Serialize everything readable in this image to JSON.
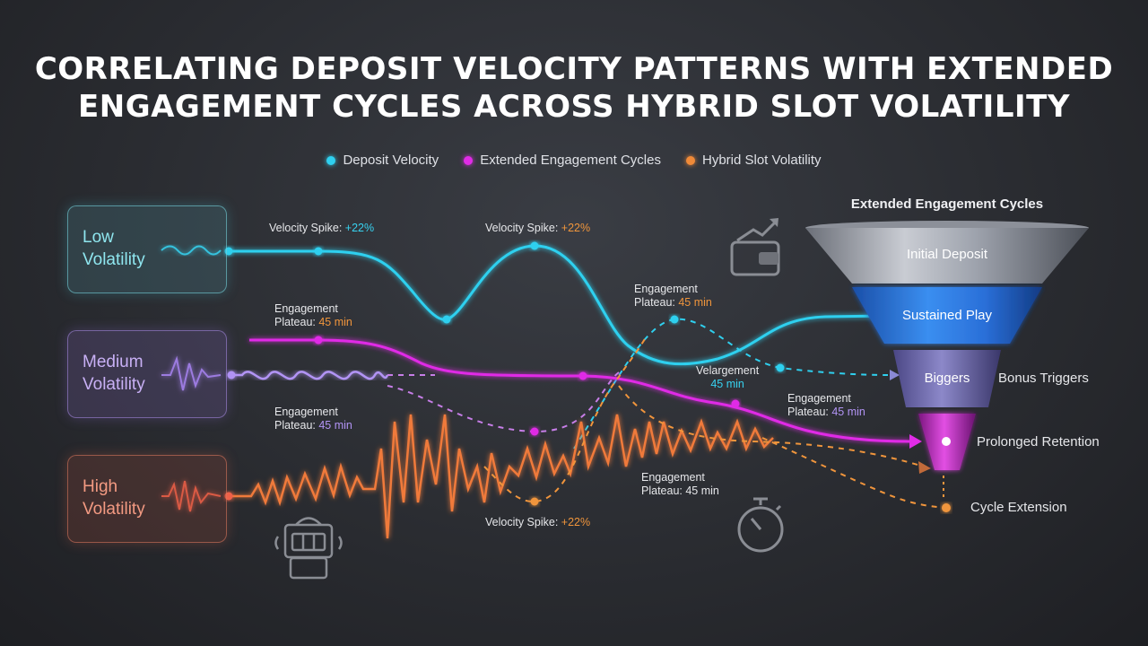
{
  "title": {
    "line1": "CORRELATING DEPOSIT VELOCITY PATTERNS WITH EXTENDED",
    "line2": "ENGAGEMENT CYCLES ACROSS HYBRID SLOT VOLATILITY"
  },
  "legend": [
    {
      "label": "Deposit Velocity",
      "color": "#2fd0ef"
    },
    {
      "label": "Extended Engagement Cycles",
      "color": "#e02ce6"
    },
    {
      "label": "Hybrid Slot Volatility",
      "color": "#f08a38"
    }
  ],
  "volatility": {
    "low": {
      "line1": "Low",
      "line2": "Volatility",
      "color": "#2fd0ef"
    },
    "medium": {
      "line1": "Medium",
      "line2": "Volatility",
      "color": "#a885f2"
    },
    "high": {
      "line1": "High",
      "line2": "Volatility",
      "color": "#f0604a"
    }
  },
  "annotations": {
    "spike1": {
      "text": "Velocity Spike: ",
      "value": "+22%"
    },
    "spike2": {
      "text": "Velocity Spike: ",
      "value": "+22%"
    },
    "spike3": {
      "text": "Velocity Spike: ",
      "value": "+22%"
    },
    "plateau1": {
      "line1": "Engagement",
      "line2": "Plateau: ",
      "value": "45 min"
    },
    "plateau2": {
      "line1": "Engagement",
      "line2": "Plateau: ",
      "value": "45 min"
    },
    "plateau3": {
      "line1": "Engagement",
      "line2": "Plateau: ",
      "value": "45 min"
    },
    "plateau4": {
      "line1": "Engagement",
      "line2": "Plateau: ",
      "value": "45 min"
    },
    "plateau5": {
      "line1": "Engagement",
      "line2": "Plateau: ",
      "value": "45 min"
    },
    "velargement": {
      "line1": "Velargement",
      "line2": "45 min"
    }
  },
  "funnel": {
    "title": "Extended Engagement Cycles",
    "stages": [
      "Initial Deposit",
      "Sustained Play",
      "Biggers"
    ],
    "side_labels": [
      "Bonus Triggers",
      "Prolonged Retention",
      "Cycle Extension"
    ]
  },
  "icons": [
    "wallet-growth-icon",
    "slot-machine-icon",
    "stopwatch-icon"
  ]
}
